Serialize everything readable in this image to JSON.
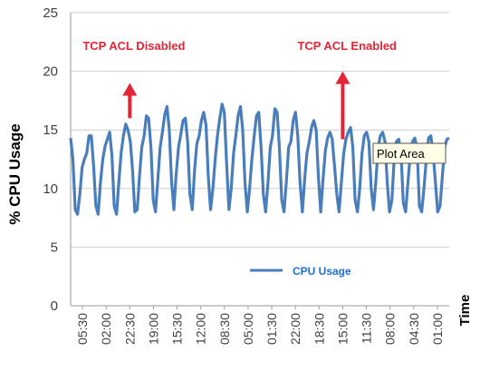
{
  "chart_data": {
    "type": "line",
    "ylabel": "% CPU Usage",
    "xlabel": "Time",
    "ylim": [
      0,
      25
    ],
    "yticks": [
      0,
      5,
      10,
      15,
      20,
      25
    ],
    "grid": "horizontal",
    "x_tick_labels": [
      "05:30",
      "02:00",
      "22:30",
      "19:00",
      "15:30",
      "12:00",
      "08:30",
      "05:00",
      "01:30",
      "22:00",
      "18:30",
      "15:00",
      "11:30",
      "08:00",
      "04:30",
      "01:00"
    ],
    "legend_position": "bottom-center",
    "series": [
      {
        "name": "CPU Usage",
        "color": "#4a7ebb",
        "values": [
          14.3,
          12.5,
          8.2,
          7.8,
          9.5,
          11.8,
          12.5,
          13,
          14.5,
          14.5,
          12,
          8.5,
          7.8,
          10.5,
          12.5,
          13.6,
          14.2,
          14.8,
          12.8,
          8.5,
          7.8,
          10.5,
          13,
          14.5,
          15.5,
          15,
          14,
          11.5,
          8,
          8.2,
          11,
          13.5,
          14.5,
          16.2,
          16,
          13.5,
          9,
          8,
          10.8,
          13.5,
          14.8,
          16.3,
          17,
          15,
          10.5,
          8.2,
          11.2,
          13.5,
          14.6,
          15.8,
          16,
          14,
          9.5,
          8.2,
          11.5,
          13.8,
          14.5,
          15.8,
          16.5,
          15.4,
          11,
          8.2,
          10,
          12.5,
          14.5,
          16,
          17.2,
          16.5,
          12,
          8.2,
          10,
          13,
          14.5,
          16.2,
          17,
          15,
          10.5,
          8,
          10,
          12.5,
          14.5,
          16.2,
          16.5,
          13.5,
          9.5,
          8,
          10.5,
          13.5,
          14.5,
          16.8,
          16.5,
          13.5,
          9,
          8,
          10.5,
          13.5,
          14,
          15.8,
          16.5,
          14.5,
          10.5,
          8,
          10.8,
          13,
          14,
          15.2,
          15.8,
          15,
          11,
          8,
          10.8,
          13.2,
          14.3,
          14.8,
          14.2,
          12,
          9.5,
          8,
          10.5,
          13,
          14.2,
          14.8,
          15.2,
          13.5,
          9,
          8,
          10,
          13,
          14.5,
          14.8,
          14,
          10,
          8.2,
          10.5,
          13.5,
          14.5,
          14.8,
          14,
          10.5,
          8,
          9,
          12.5,
          14,
          14.2,
          13,
          8.8,
          8,
          10.5,
          12.8,
          14,
          14.3,
          13.5,
          8.5,
          8,
          10,
          12.5,
          14.3,
          14.5,
          13,
          10.5,
          8,
          8.5,
          11,
          13.5,
          14.2,
          14.3
        ]
      }
    ],
    "annotations": [
      {
        "text": "TCP ACL Disabled",
        "x": "22:30",
        "y": 16,
        "arrow_to_y": 19,
        "color": "#e32636"
      },
      {
        "text": "TCP ACL Enabled",
        "x": "15:00",
        "y": 14.2,
        "arrow_to_y": 20,
        "color": "#e32636"
      }
    ],
    "tooltip": "Plot Area"
  }
}
